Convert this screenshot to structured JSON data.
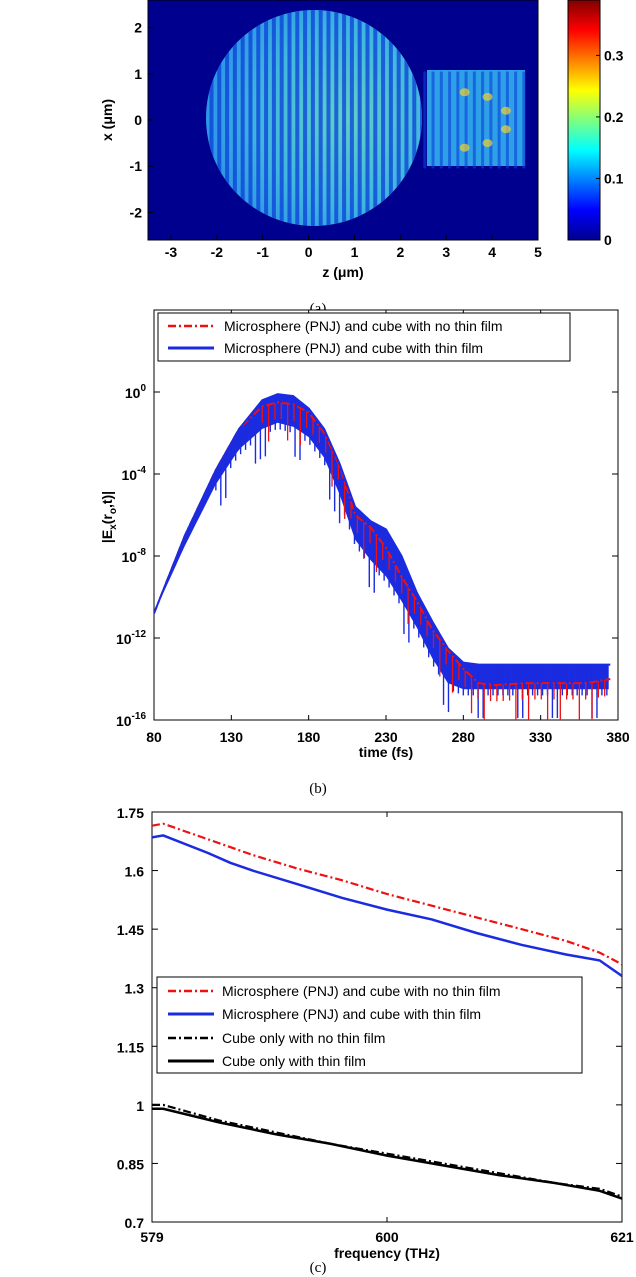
{
  "chart_data": [
    {
      "type": "heatmap",
      "caption": "(a)",
      "xlabel": "z (μm)",
      "ylabel": "x (μm)",
      "xticks": [
        "-3",
        "-2",
        "-1",
        "0",
        "1",
        "2",
        "3",
        "4",
        "5"
      ],
      "yticks": [
        "2",
        "1",
        "0",
        "-1",
        "-2"
      ],
      "xlim": [
        -3.5,
        5
      ],
      "ylim": [
        -2.6,
        2.6
      ],
      "colorbar": {
        "range": [
          0,
          0.39
        ],
        "ticks": [
          "0",
          "0.1",
          "0.2",
          "0.3"
        ]
      },
      "features": {
        "sphere": {
          "center_z": 0,
          "radius": 2.5
        },
        "cube": {
          "z": [
            2.5,
            4.7
          ],
          "x": [
            -1.05,
            1.05
          ]
        }
      }
    },
    {
      "type": "line",
      "caption": "(b)",
      "xlabel": "time (fs)",
      "ylabel_main": "|E",
      "ylabel_sub1": "x",
      "ylabel_mid": "(r",
      "ylabel_sub2": "o",
      "ylabel_end": ",t)|",
      "xticks": [
        "80",
        "130",
        "180",
        "230",
        "280",
        "330",
        "380"
      ],
      "yticks": [
        "10",
        "10",
        "10",
        "10",
        "10"
      ],
      "yexps": [
        "0",
        "-4",
        "-8",
        "-12",
        "-16"
      ],
      "xlim": [
        80,
        380
      ],
      "ylim_log10": [
        -16,
        4
      ],
      "legend": [
        "Microsphere (PNJ) and cube with no thin film",
        "Microsphere (PNJ) and cube with thin film"
      ],
      "series": [
        {
          "name": "Microsphere (PNJ) and cube with no thin film",
          "color": "#ee1111",
          "style": "dash-dot",
          "x": [
            80,
            100,
            120,
            135,
            150,
            160,
            170,
            180,
            190,
            200,
            210,
            220,
            230,
            240,
            250,
            260,
            270,
            280,
            290,
            300,
            320,
            340,
            360,
            375
          ],
          "log10y": [
            -10.8,
            -7,
            -3.8,
            -1.8,
            -0.7,
            -0.5,
            -0.6,
            -1,
            -2,
            -3.6,
            -6,
            -6.6,
            -7.6,
            -9,
            -10.2,
            -11.6,
            -12.6,
            -13.5,
            -14.2,
            -14.3,
            -14.2,
            -14.2,
            -14.2,
            -14
          ]
        },
        {
          "name": "Microsphere (PNJ) and cube with thin film",
          "color": "#1a2be0",
          "style": "solid",
          "x": [
            80,
            100,
            120,
            135,
            150,
            160,
            170,
            180,
            190,
            200,
            210,
            220,
            230,
            240,
            250,
            260,
            270,
            280,
            290,
            300,
            320,
            340,
            360,
            375
          ],
          "log10y": [
            -10.8,
            -7,
            -3.8,
            -1.8,
            -0.4,
            -0.1,
            -0.2,
            -0.8,
            -1.8,
            -3.5,
            -5.6,
            -6.3,
            -6.7,
            -8,
            -9.8,
            -11.2,
            -12.5,
            -13.2,
            -13.3,
            -13.3,
            -13.3,
            -13.3,
            -13.3,
            -13.3
          ],
          "envelope_low": [
            -10.8,
            -7.5,
            -4.5,
            -2.8,
            -1.8,
            -1.5,
            -1.7,
            -2.2,
            -3.2,
            -5,
            -7.2,
            -8.2,
            -9,
            -10.2,
            -11.5,
            -13,
            -14.2,
            -14.5,
            -14.5,
            -14.5,
            -14.5,
            -14.5,
            -14.5,
            -14.5
          ]
        }
      ]
    },
    {
      "type": "line",
      "caption": "(c)",
      "xlabel": "frequency (THz)",
      "ylabel": "",
      "xticks": [
        "579",
        "600",
        "621"
      ],
      "yticks": [
        "1.75",
        "1.6",
        "1.45",
        "1.3",
        "1.15",
        "1",
        "0.85",
        "0.7"
      ],
      "xlim": [
        579,
        621
      ],
      "ylim": [
        0.7,
        1.75
      ],
      "legend": [
        "Microsphere (PNJ) and cube with no thin film",
        "Microsphere (PNJ) and cube with thin film",
        "Cube only with no thin film",
        "Cube only with thin film"
      ],
      "series": [
        {
          "name": "Microsphere (PNJ) and cube with no thin film",
          "color": "#ee1111",
          "style": "dash-dot",
          "x": [
            579,
            580,
            584,
            588,
            592,
            596,
            600,
            604,
            608,
            612,
            616,
            619,
            621
          ],
          "y": [
            1.715,
            1.72,
            1.68,
            1.64,
            1.605,
            1.575,
            1.54,
            1.51,
            1.48,
            1.45,
            1.42,
            1.39,
            1.36
          ]
        },
        {
          "name": "Microsphere (PNJ) and cube with thin film",
          "color": "#1a2be0",
          "style": "solid",
          "x": [
            579,
            580,
            584,
            586,
            588,
            592,
            596,
            600,
            604,
            608,
            612,
            616,
            619,
            621
          ],
          "y": [
            1.685,
            1.69,
            1.645,
            1.62,
            1.6,
            1.565,
            1.53,
            1.5,
            1.475,
            1.44,
            1.41,
            1.385,
            1.37,
            1.33
          ]
        },
        {
          "name": "Cube only with no thin film",
          "color": "#000000",
          "style": "dash-dot",
          "x": [
            579,
            580,
            585,
            590,
            595,
            600,
            605,
            610,
            615,
            619,
            621
          ],
          "y": [
            1.0,
            1.0,
            0.96,
            0.93,
            0.9,
            0.875,
            0.85,
            0.825,
            0.8,
            0.785,
            0.765
          ]
        },
        {
          "name": "Cube only with thin film",
          "color": "#000000",
          "style": "solid",
          "x": [
            579,
            580,
            585,
            590,
            595,
            600,
            605,
            610,
            615,
            619,
            621
          ],
          "y": [
            0.99,
            0.99,
            0.955,
            0.925,
            0.9,
            0.87,
            0.845,
            0.82,
            0.8,
            0.78,
            0.76
          ]
        }
      ]
    }
  ]
}
